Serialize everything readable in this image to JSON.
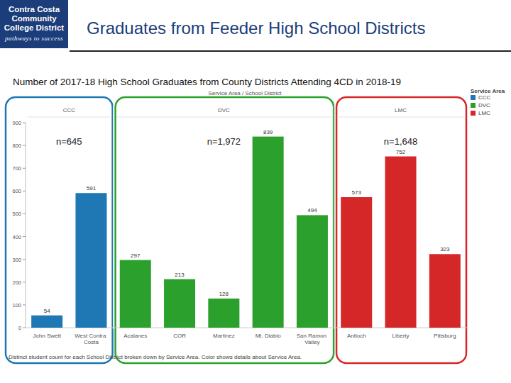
{
  "page": {
    "logo_lines": [
      "Contra Costa",
      "Community",
      "College District"
    ],
    "logo_tagline": "pathways to success"
  },
  "chart_data": {
    "type": "bar",
    "title": "Graduates from Feeder High School Districts",
    "subtitle": "Number of 2017-18 High School Graduates from County Districts Attending 4CD in 2018-19",
    "x_label": "Service Area / School District",
    "legend_title": "Service Area",
    "caption": "Distinct student count for each School District broken down by Service Area. Color shows details about Service Area.",
    "annotations": [
      "n=645",
      "n=1,972",
      "n=1,648"
    ],
    "categories": [
      "John Swett",
      "West Contra Costa",
      "Acalanes",
      "COR",
      "Martinez",
      "Mt. Diablo",
      "San Ramon Valley",
      "Antioch",
      "Liberty",
      "Pittsburg"
    ],
    "series": [
      {
        "name": "CCC",
        "color": "#1f77b4",
        "values": [
          54,
          591,
          null,
          null,
          null,
          null,
          null,
          null,
          null,
          null
        ]
      },
      {
        "name": "DVC",
        "color": "#2ca02c",
        "values": [
          null,
          null,
          297,
          213,
          128,
          839,
          494,
          null,
          null,
          null
        ]
      },
      {
        "name": "LMC",
        "color": "#d62728",
        "values": [
          null,
          null,
          null,
          null,
          null,
          null,
          null,
          573,
          752,
          323
        ]
      }
    ],
    "ylim": [
      0,
      900
    ],
    "yticks": [
      0,
      100,
      200,
      300,
      400,
      500,
      600,
      700,
      800,
      900
    ],
    "grid": false,
    "data_labels": true,
    "legend": "right"
  }
}
